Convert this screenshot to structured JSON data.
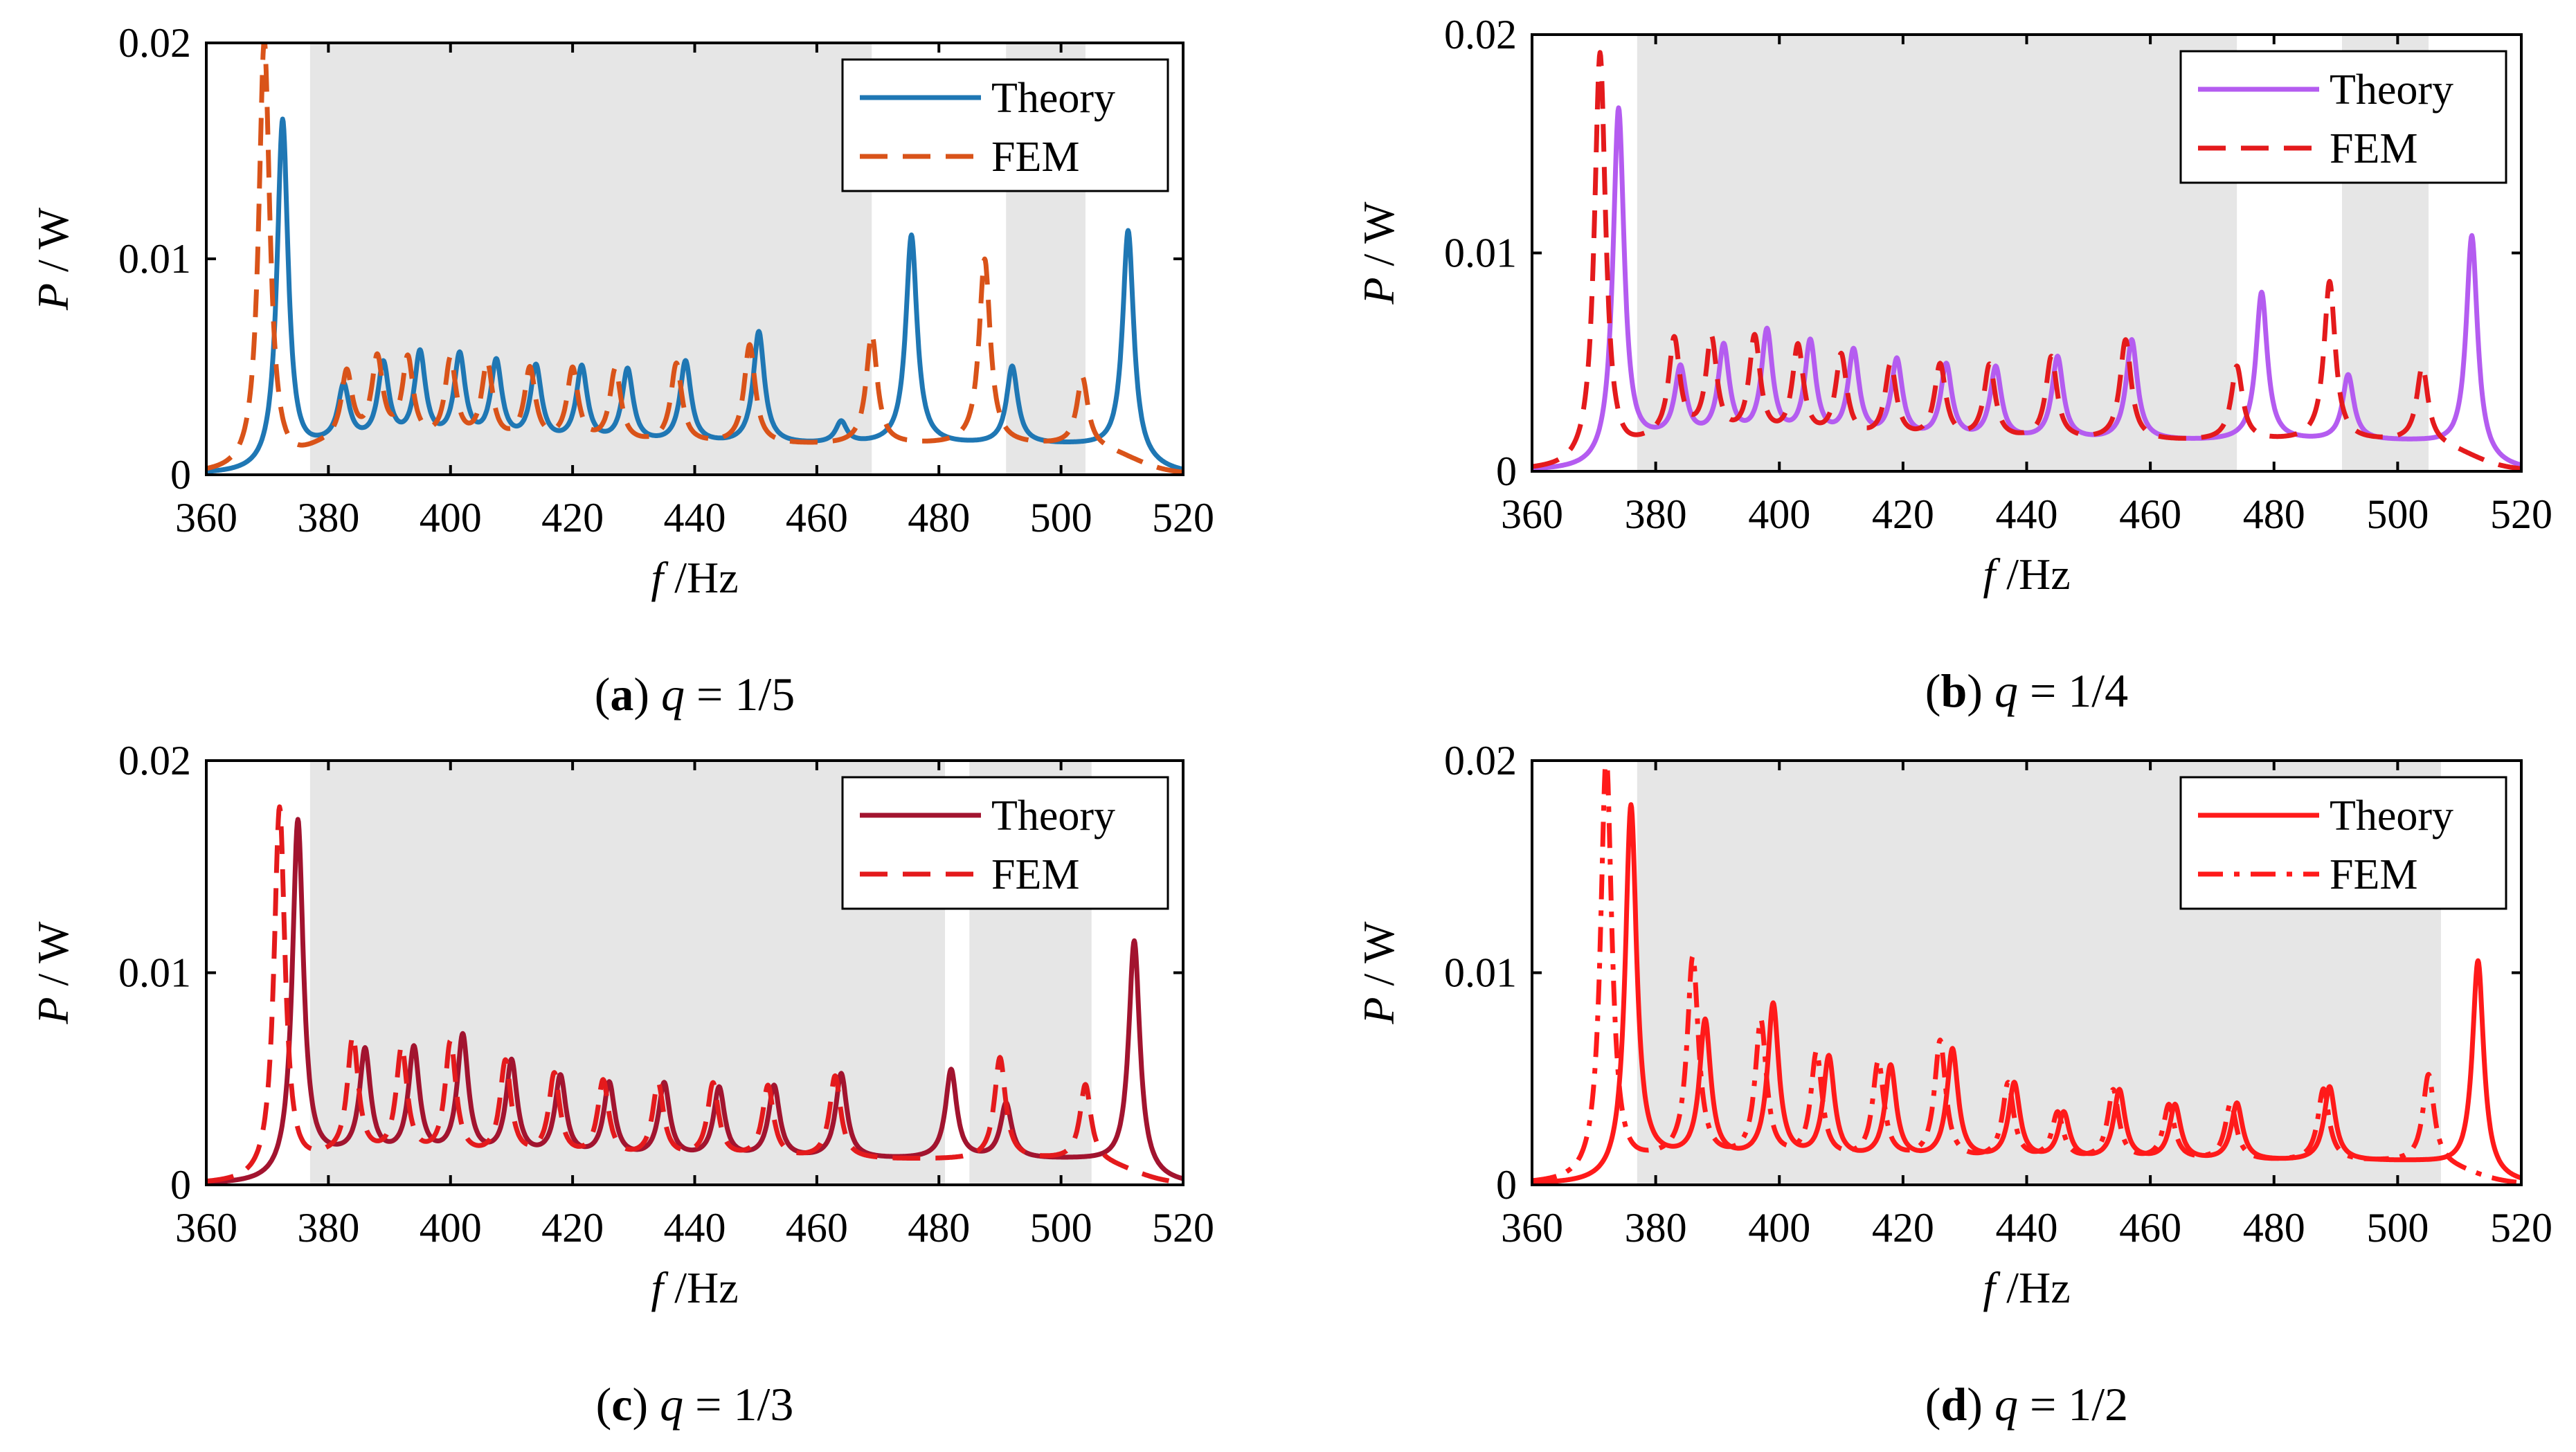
{
  "chart_data": [
    {
      "type": "line",
      "caption": {
        "letter": "a",
        "var": "q",
        "value": " = 1/5"
      },
      "xlabel": {
        "var": "f",
        "unit": "/Hz"
      },
      "ylabel": {
        "var": "P",
        "unit": " / W"
      },
      "xlim": [
        360,
        520
      ],
      "ylim": [
        0,
        0.02
      ],
      "xticks": [
        "360",
        "380",
        "400",
        "420",
        "440",
        "460",
        "480",
        "500",
        "520"
      ],
      "yticks": [
        "0",
        "0.01",
        "0.02"
      ],
      "shaded_bands": [
        [
          377,
          469
        ],
        [
          491,
          504
        ]
      ],
      "legend_position": "top-right",
      "series": [
        {
          "name": "Theory",
          "style": "solid",
          "color": "#1f77b4",
          "baseline": 0.0015,
          "peaks": [
            [
              372.5,
              0.0162
            ],
            [
              382.5,
              0.0026
            ],
            [
              389,
              0.0036
            ],
            [
              395,
              0.0041
            ],
            [
              401.5,
              0.004
            ],
            [
              407.5,
              0.0037
            ],
            [
              414,
              0.0035
            ],
            [
              421.5,
              0.0035
            ],
            [
              429,
              0.0034
            ],
            [
              438.5,
              0.0038
            ],
            [
              450.5,
              0.0052
            ],
            [
              464,
              0.001
            ],
            [
              475.5,
              0.0097
            ],
            [
              492,
              0.0036
            ],
            [
              511,
              0.0105
            ]
          ]
        },
        {
          "name": "FEM",
          "style": "dashed",
          "color": "#d95319",
          "baseline": 0.0015,
          "peaks": [
            [
              369.5,
              0.02
            ],
            [
              383,
              0.0032
            ],
            [
              388,
              0.0038
            ],
            [
              393,
              0.0038
            ],
            [
              400,
              0.0038
            ],
            [
              406,
              0.0036
            ],
            [
              413,
              0.0034
            ],
            [
              420,
              0.0034
            ],
            [
              427,
              0.0034
            ],
            [
              437,
              0.0037
            ],
            [
              449,
              0.0046
            ],
            [
              469,
              0.0051
            ],
            [
              487.5,
              0.0086
            ],
            [
              503.5,
              0.0032
            ]
          ]
        }
      ]
    },
    {
      "type": "line",
      "caption": {
        "letter": "b",
        "var": "q",
        "value": " = 1/4"
      },
      "xlabel": {
        "var": "f",
        "unit": "/Hz"
      },
      "ylabel": {
        "var": "P",
        "unit": " / W"
      },
      "xlim": [
        360,
        520
      ],
      "ylim": [
        0,
        0.02
      ],
      "xticks": [
        "360",
        "380",
        "400",
        "420",
        "440",
        "460",
        "480",
        "500",
        "520"
      ],
      "yticks": [
        "0",
        "0.01",
        "0.02"
      ],
      "shaded_bands": [
        [
          377,
          474
        ],
        [
          491,
          505
        ]
      ],
      "legend_position": "top-right",
      "series": [
        {
          "name": "Theory",
          "style": "solid",
          "color": "#b45cf0",
          "baseline": 0.0015,
          "peaks": [
            [
              374,
              0.0162
            ],
            [
              384,
              0.0032
            ],
            [
              391,
              0.0042
            ],
            [
              398,
              0.0049
            ],
            [
              405,
              0.0044
            ],
            [
              412,
              0.004
            ],
            [
              419,
              0.0036
            ],
            [
              427,
              0.0034
            ],
            [
              435,
              0.0033
            ],
            [
              445,
              0.0038
            ],
            [
              457,
              0.0046
            ],
            [
              478,
              0.0068
            ],
            [
              492,
              0.003
            ],
            [
              512,
              0.0101
            ]
          ]
        },
        {
          "name": "FEM",
          "style": "dashed",
          "color": "#e41a1c",
          "baseline": 0.0015,
          "peaks": [
            [
              371,
              0.019
            ],
            [
              383,
              0.0045
            ],
            [
              389,
              0.0045
            ],
            [
              396,
              0.0046
            ],
            [
              403,
              0.0042
            ],
            [
              410,
              0.0038
            ],
            [
              418,
              0.0034
            ],
            [
              426,
              0.0034
            ],
            [
              434,
              0.0034
            ],
            [
              444,
              0.0038
            ],
            [
              456,
              0.0046
            ],
            [
              474,
              0.0034
            ],
            [
              489,
              0.0073
            ],
            [
              504,
              0.0035
            ]
          ]
        }
      ]
    },
    {
      "type": "line",
      "caption": {
        "letter": "c",
        "var": "q",
        "value": " = 1/3"
      },
      "xlabel": {
        "var": "f",
        "unit": "/Hz"
      },
      "ylabel": {
        "var": "P",
        "unit": " / W"
      },
      "xlim": [
        360,
        520
      ],
      "ylim": [
        0,
        0.02
      ],
      "xticks": [
        "360",
        "380",
        "400",
        "420",
        "440",
        "460",
        "480",
        "500",
        "520"
      ],
      "yticks": [
        "0",
        "0.01",
        "0.02"
      ],
      "shaded_bands": [
        [
          377,
          481
        ],
        [
          485,
          505
        ]
      ],
      "legend_position": "top-right",
      "series": [
        {
          "name": "Theory",
          "style": "solid",
          "color": "#a2142f",
          "baseline": 0.0013,
          "peaks": [
            [
              375,
              0.0167
            ],
            [
              386,
              0.005
            ],
            [
              394,
              0.0051
            ],
            [
              402,
              0.0057
            ],
            [
              410,
              0.0045
            ],
            [
              418,
              0.0038
            ],
            [
              426,
              0.0035
            ],
            [
              435,
              0.0035
            ],
            [
              444,
              0.0033
            ],
            [
              453,
              0.0034
            ],
            [
              464,
              0.004
            ],
            [
              482,
              0.0042
            ],
            [
              491,
              0.0026
            ],
            [
              512,
              0.0109
            ]
          ]
        },
        {
          "name": "FEM",
          "style": "dashed",
          "color": "#e41a1c",
          "baseline": 0.0013,
          "peaks": [
            [
              372,
              0.0176
            ],
            [
              384,
              0.0056
            ],
            [
              392,
              0.0051
            ],
            [
              400,
              0.0054
            ],
            [
              409,
              0.0045
            ],
            [
              417,
              0.0039
            ],
            [
              425,
              0.0036
            ],
            [
              434,
              0.0035
            ],
            [
              443,
              0.0035
            ],
            [
              452,
              0.0034
            ],
            [
              463,
              0.0039
            ],
            [
              490,
              0.0048
            ],
            [
              504,
              0.0036
            ]
          ]
        }
      ]
    },
    {
      "type": "line",
      "caption": {
        "letter": "d",
        "var": "q",
        "value": " = 1/2"
      },
      "xlabel": {
        "var": "f",
        "unit": "/Hz"
      },
      "ylabel": {
        "var": "P",
        "unit": " / W"
      },
      "xlim": [
        360,
        520
      ],
      "ylim": [
        0,
        0.02
      ],
      "xticks": [
        "360",
        "380",
        "400",
        "420",
        "440",
        "460",
        "480",
        "500",
        "520"
      ],
      "yticks": [
        "0",
        "0.01",
        "0.02"
      ],
      "shaded_bands": [
        [
          377,
          507
        ]
      ],
      "legend_position": "top-right",
      "series": [
        {
          "name": "Theory",
          "style": "solid",
          "color": "#ff1a1a",
          "baseline": 0.0012,
          "peaks": [
            [
              376,
              0.0173
            ],
            [
              388,
              0.0065
            ],
            [
              399,
              0.0073
            ],
            [
              408,
              0.0048
            ],
            [
              418,
              0.0044
            ],
            [
              428,
              0.0052
            ],
            [
              438,
              0.0036
            ],
            [
              446,
              0.0022
            ],
            [
              455,
              0.0033
            ],
            [
              464,
              0.0026
            ],
            [
              474,
              0.0027
            ],
            [
              489,
              0.0035
            ],
            [
              513,
              0.0101
            ]
          ]
        },
        {
          "name": "FEM",
          "style": "dashdot",
          "color": "#ff1a1a",
          "baseline": 0.0012,
          "peaks": [
            [
              372,
              0.02
            ],
            [
              386,
              0.0095
            ],
            [
              397,
              0.0065
            ],
            [
              406,
              0.005
            ],
            [
              416,
              0.0046
            ],
            [
              426,
              0.0056
            ],
            [
              437,
              0.0036
            ],
            [
              445,
              0.0022
            ],
            [
              454,
              0.0033
            ],
            [
              463,
              0.0026
            ],
            [
              473,
              0.0027
            ],
            [
              488,
              0.0034
            ],
            [
              505,
              0.0042
            ]
          ]
        }
      ]
    }
  ]
}
